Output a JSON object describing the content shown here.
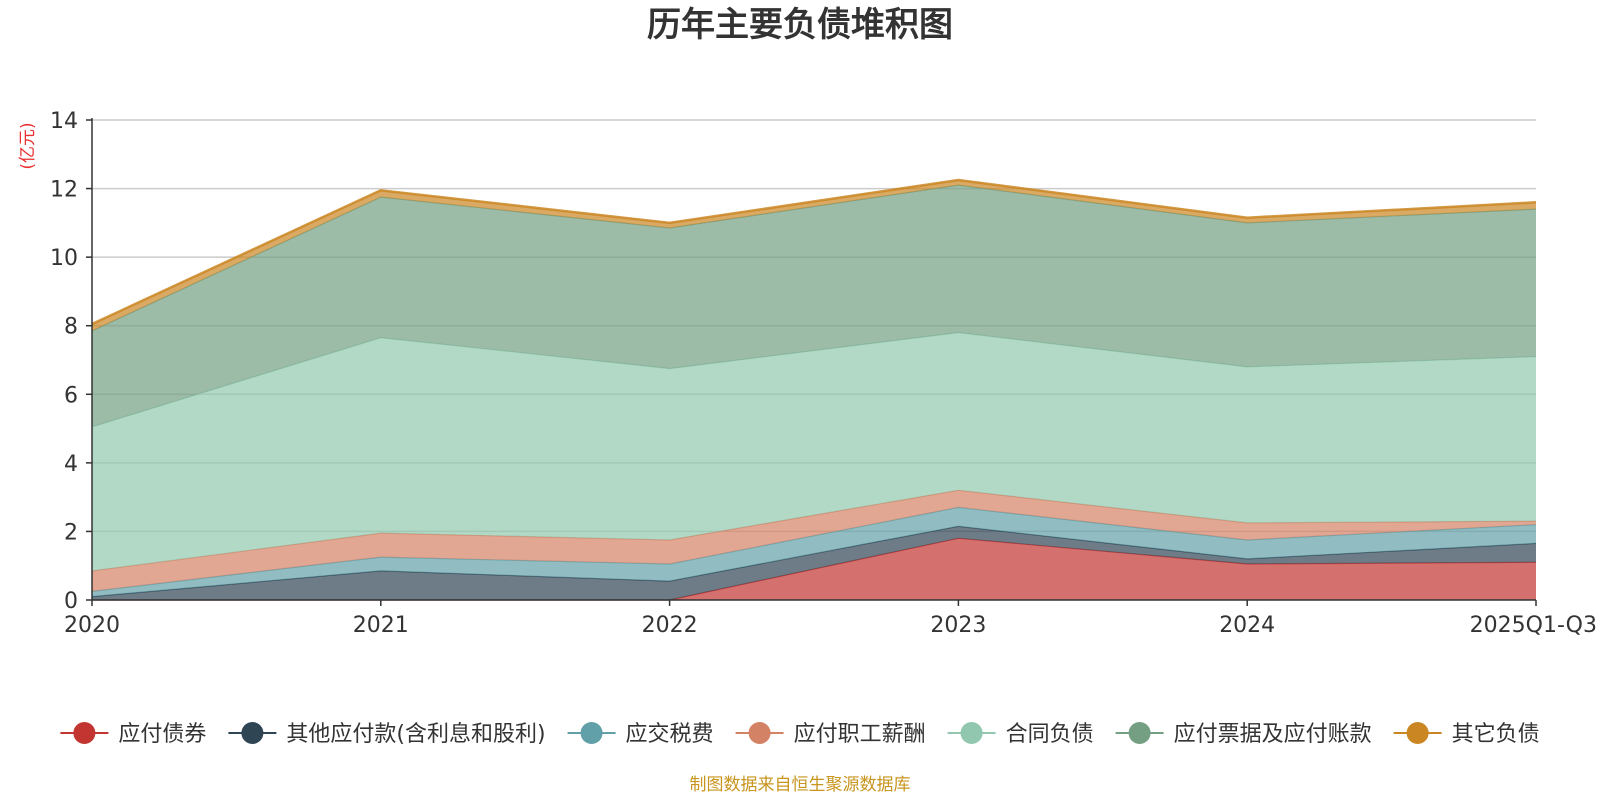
{
  "chart_data": {
    "type": "area",
    "stacked": true,
    "title": "历年主要负债堆积图",
    "unit_label": "(亿元)",
    "xlabel": "",
    "ylabel": "(亿元)",
    "categories": [
      "2020",
      "2021",
      "2022",
      "2023",
      "2024",
      "2025Q1-Q3"
    ],
    "ylim": [
      0,
      14
    ],
    "yticks": [
      0,
      2,
      4,
      6,
      8,
      10,
      12,
      14
    ],
    "grid": true,
    "legend_position": "bottom",
    "series": [
      {
        "name": "应付债券",
        "color": "#c23531",
        "values": [
          0,
          0,
          0,
          1.8,
          1.05,
          1.1
        ]
      },
      {
        "name": "其他应付款(含利息和股利)",
        "color": "#2f4554",
        "values": [
          0.1,
          0.85,
          0.55,
          0.35,
          0.15,
          0.55
        ]
      },
      {
        "name": "应交税费",
        "color": "#61a0a8",
        "values": [
          0.15,
          0.4,
          0.5,
          0.55,
          0.55,
          0.55
        ]
      },
      {
        "name": "应付职工薪酬",
        "color": "#d48265",
        "values": [
          0.6,
          0.7,
          0.7,
          0.5,
          0.5,
          0.1
        ]
      },
      {
        "name": "合同负债",
        "color": "#91c7ae",
        "values": [
          4.2,
          5.7,
          5.0,
          4.6,
          4.55,
          4.8
        ]
      },
      {
        "name": "应付票据及应付账款",
        "color": "#749f83",
        "values": [
          2.8,
          4.1,
          4.1,
          4.3,
          4.2,
          4.3
        ]
      },
      {
        "name": "其它负债",
        "color": "#ca8622",
        "values": [
          0.2,
          0.2,
          0.15,
          0.15,
          0.15,
          0.2
        ]
      }
    ]
  },
  "footer": {
    "source": "制图数据来自恒生聚源数据库"
  }
}
